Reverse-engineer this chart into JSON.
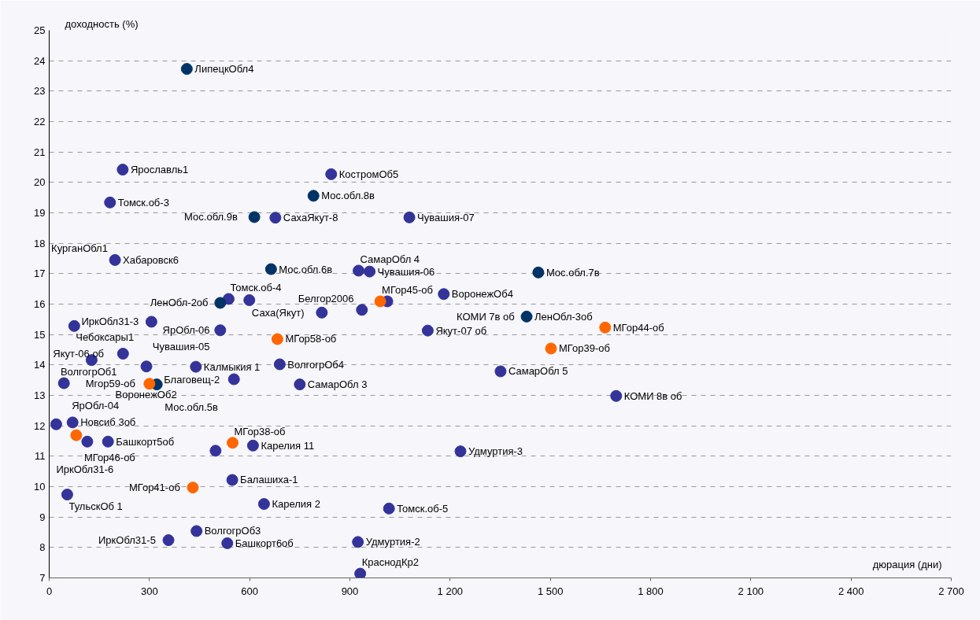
{
  "chart_data": {
    "type": "scatter",
    "xlabel": "дюрация (дни)",
    "ylabel": "доходность (%)",
    "xlim": [
      0,
      2700
    ],
    "ylim": [
      7,
      25
    ],
    "xticks": [
      0,
      300,
      600,
      900,
      {
        "value": 1200,
        "label": "1 200"
      },
      {
        "value": 1500,
        "label": "1 500"
      },
      {
        "value": 1800,
        "label": "1 800"
      },
      {
        "value": 2100,
        "label": "2 100"
      },
      {
        "value": 2400,
        "label": "2 400"
      },
      {
        "value": 2700,
        "label": "2 700"
      }
    ],
    "yticks": [
      7,
      8,
      9,
      10,
      11,
      12,
      13,
      14,
      15,
      16,
      17,
      18,
      19,
      20,
      21,
      22,
      23,
      24,
      25
    ],
    "grid": "y",
    "marker": "circle",
    "series": [
      {
        "color": "#333399",
        "x": [
          220,
          844,
          182,
          677,
          197,
          926,
          1078,
          959,
          1012,
          936,
          816,
          1181,
          1133,
          1351,
          1697,
          1231,
          1017,
          924,
          931,
          537,
          599,
          306,
          75,
          512,
          127,
          221,
          291,
          439,
          690,
          553,
          750,
          44,
          21,
          70,
          114,
          176,
          498,
          610,
          548,
          54,
          643,
          357,
          441,
          533
        ],
        "values": [
          20.42,
          20.27,
          19.34,
          18.84,
          17.45,
          17.1,
          18.85,
          17.07,
          16.09,
          15.81,
          15.72,
          16.33,
          15.13,
          13.79,
          12.98,
          11.16,
          9.28,
          8.18,
          7.14,
          16.17,
          16.13,
          15.42,
          15.28,
          15.14,
          14.16,
          14.37,
          13.95,
          13.94,
          14.02,
          13.53,
          13.36,
          13.4,
          12.05,
          12.11,
          11.48,
          11.48,
          11.18,
          11.35,
          10.22,
          9.74,
          9.43,
          8.24,
          8.54,
          8.14
        ]
      },
      {
        "color": "#003366",
        "x": [
          412,
          791,
          614,
          664,
          1464,
          512,
          1429,
          322
        ],
        "values": [
          23.73,
          19.56,
          18.86,
          17.15,
          17.04,
          16.04,
          15.59,
          13.36
        ]
      },
      {
        "color": "#ff6600",
        "x": [
          991,
          683,
          300,
          81,
          549,
          430,
          1502,
          1664
        ],
        "values": [
          16.09,
          14.85,
          13.38,
          11.69,
          11.44,
          9.97,
          14.54,
          15.23
        ]
      }
    ],
    "annotations": [
      {
        "text": "ЛипецкОбл4",
        "x": 412,
        "y": 23.73
      },
      {
        "text": "Ярославль1",
        "x": 220,
        "y": 20.42
      },
      {
        "text": "КостромОб5",
        "x": 844,
        "y": 20.27
      },
      {
        "text": "Мос.обл.8в",
        "x": 791,
        "y": 19.56
      },
      {
        "text": "Томск.об-3",
        "x": 182,
        "y": 19.34
      },
      {
        "text": "Мос.обл.9в",
        "x": 614,
        "y": 18.86
      },
      {
        "text": "СахаЯкут-8",
        "x": 677,
        "y": 18.84
      },
      {
        "text": "Чувашия-07",
        "x": 1078,
        "y": 18.85
      },
      {
        "text": "Хабаровск6",
        "x": 197,
        "y": 17.45
      },
      {
        "text": "КурганОбл1",
        "x": 197,
        "y": 17.45
      },
      {
        "text": "Мос.обл.6в",
        "x": 664,
        "y": 17.15
      },
      {
        "text": "СамарОбл 4",
        "x": 926,
        "y": 17.1
      },
      {
        "text": "Чувашия-06",
        "x": 959,
        "y": 17.07
      },
      {
        "text": "Мос.обл.7в",
        "x": 1464,
        "y": 17.04
      },
      {
        "text": "МГор45-об",
        "x": 991,
        "y": 16.09
      },
      {
        "text": "ВоронежОб4",
        "x": 1181,
        "y": 16.33
      },
      {
        "text": "ЛенОбл-2об",
        "x": 512,
        "y": 16.04
      },
      {
        "text": "Томск.об-4",
        "x": 537,
        "y": 16.17
      },
      {
        "text": "Саха(Якут)",
        "x": 816,
        "y": 15.72
      },
      {
        "text": "Белгор2006",
        "x": 936,
        "y": 15.81
      },
      {
        "text": "ИркОбл31-3",
        "x": 306,
        "y": 15.42
      },
      {
        "text": "ЛенОбл-3об",
        "x": 1429,
        "y": 15.59
      },
      {
        "text": "КОМИ 7в об",
        "x": 1429,
        "y": 15.59
      },
      {
        "text": "МГор44-об",
        "x": 1664,
        "y": 15.23
      },
      {
        "text": "Чебоксары1",
        "x": 75,
        "y": 15.28
      },
      {
        "text": "ЯрОбл-06",
        "x": 512,
        "y": 15.14
      },
      {
        "text": "Чувашия-05",
        "x": 512,
        "y": 15.14
      },
      {
        "text": "МГор58-об",
        "x": 683,
        "y": 14.85
      },
      {
        "text": "Якут-07 об",
        "x": 1133,
        "y": 15.13
      },
      {
        "text": "ВолгогрОб1",
        "x": 127,
        "y": 14.16
      },
      {
        "text": "Якут-06 об",
        "x": 221,
        "y": 14.37
      },
      {
        "text": "ВоронежОб2",
        "x": 291,
        "y": 13.95
      },
      {
        "text": "Калмыкия 1",
        "x": 439,
        "y": 13.94
      },
      {
        "text": "ВолгогрОб4",
        "x": 690,
        "y": 14.02
      },
      {
        "text": "МГор39-об",
        "x": 1502,
        "y": 14.54
      },
      {
        "text": "Благовещ-2",
        "x": 553,
        "y": 13.53
      },
      {
        "text": "Мос.обл.5в",
        "x": 322,
        "y": 13.36
      },
      {
        "text": "СамарОбл 3",
        "x": 750,
        "y": 13.36
      },
      {
        "text": "СамарОбл 5",
        "x": 1351,
        "y": 13.79
      },
      {
        "text": "Мгор59-об",
        "x": 300,
        "y": 13.38
      },
      {
        "text": "ЯрОбл-04",
        "x": 44,
        "y": 13.4
      },
      {
        "text": "КОМИ 8в об",
        "x": 1697,
        "y": 12.98
      },
      {
        "text": "Новсиб 3об",
        "x": 70,
        "y": 12.11
      },
      {
        "text": "МГор46-об",
        "x": 81,
        "y": 11.69
      },
      {
        "text": "ИркОбл31-6",
        "x": 114,
        "y": 11.48
      },
      {
        "text": "Башкорт5об",
        "x": 176,
        "y": 11.48
      },
      {
        "text": "Карелия 11",
        "x": 610,
        "y": 11.35
      },
      {
        "text": "МГор38-об",
        "x": 549,
        "y": 11.44
      },
      {
        "text": "Удмуртия-3",
        "x": 1231,
        "y": 11.16
      },
      {
        "text": "МГор41-об",
        "x": 430,
        "y": 9.97
      },
      {
        "text": "Балашиха-1",
        "x": 548,
        "y": 10.22
      },
      {
        "text": "ТульскОб 1",
        "x": 54,
        "y": 9.74
      },
      {
        "text": "Карелия 2",
        "x": 643,
        "y": 9.43
      },
      {
        "text": "Томск.об-5",
        "x": 1017,
        "y": 9.28
      },
      {
        "text": "ИркОбл31-5",
        "x": 357,
        "y": 8.24
      },
      {
        "text": "ВолгогрОб3",
        "x": 441,
        "y": 8.54
      },
      {
        "text": "Башкорт6об",
        "x": 533,
        "y": 8.14
      },
      {
        "text": "Удмуртия-2",
        "x": 924,
        "y": 8.18
      },
      {
        "text": "КраснодКр2",
        "x": 931,
        "y": 7.14
      }
    ]
  }
}
